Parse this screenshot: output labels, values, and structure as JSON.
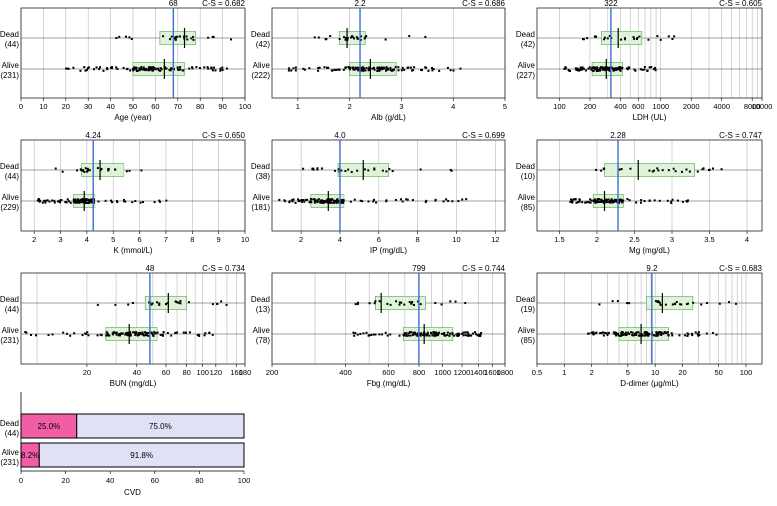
{
  "chart_data": [
    {
      "type": "scatter",
      "xlabel": "Age (year)",
      "scale": "linear",
      "xlim": [
        0,
        100
      ],
      "ticks": [
        0,
        10,
        20,
        30,
        40,
        50,
        60,
        70,
        80,
        90,
        100
      ],
      "cutoff": 68,
      "cutoff_label": "68",
      "cs": "C-S = 0.682",
      "groups": [
        {
          "name": "Dead",
          "n": "(44)",
          "q1": 62,
          "median": 73,
          "q3": 78,
          "lo": 41,
          "hi": 95
        },
        {
          "name": "Alive",
          "n": "(231)",
          "q1": 50,
          "median": 64,
          "q3": 73,
          "lo": 18,
          "hi": 93
        }
      ]
    },
    {
      "type": "scatter",
      "xlabel": "Alb (g/dL)",
      "scale": "linear",
      "xlim": [
        0.5,
        5
      ],
      "ticks": [
        1,
        2,
        3,
        4,
        5
      ],
      "cutoff": 2.2,
      "cutoff_label": "2.2",
      "cs": "C-S = 0.686",
      "groups": [
        {
          "name": "Dead",
          "n": "(42)",
          "q1": 1.8,
          "median": 1.95,
          "q3": 2.3,
          "lo": 1.2,
          "hi": 3.6
        },
        {
          "name": "Alive",
          "n": "(222)",
          "q1": 2.0,
          "median": 2.4,
          "q3": 2.9,
          "lo": 0.8,
          "hi": 4.2
        }
      ]
    },
    {
      "type": "scatter",
      "xlabel": "LDH (UL)",
      "scale": "log",
      "xlim": [
        60,
        10000
      ],
      "ticks": [
        100,
        200,
        400,
        600,
        1000,
        2000,
        4000,
        8000,
        10000
      ],
      "tick_labels": [
        "100",
        "200",
        "400",
        "600",
        "1000",
        "2000",
        "4000",
        "8000",
        "10000"
      ],
      "grid": [
        100,
        200,
        300,
        400,
        500,
        600,
        700,
        800,
        900,
        1000,
        2000,
        3000,
        4000,
        5000,
        6000,
        7000,
        8000,
        9000,
        10000
      ],
      "cutoff": 322,
      "cutoff_label": "322",
      "cs": "C-S = 0.605",
      "groups": [
        {
          "name": "Dead",
          "n": "(42)",
          "q1": 260,
          "median": 380,
          "q3": 650,
          "lo": 150,
          "hi": 1400
        },
        {
          "name": "Alive",
          "n": "(227)",
          "q1": 210,
          "median": 290,
          "q3": 420,
          "lo": 110,
          "hi": 900
        }
      ]
    },
    {
      "type": "scatter",
      "xlabel": "K (mmol/L)",
      "scale": "linear",
      "xlim": [
        1.5,
        10
      ],
      "ticks": [
        2,
        3,
        4,
        5,
        6,
        7,
        8,
        9,
        10
      ],
      "cutoff": 4.24,
      "cutoff_label": "4.24",
      "cs": "C-S = 0.650",
      "groups": [
        {
          "name": "Dead",
          "n": "(44)",
          "q1": 3.8,
          "median": 4.5,
          "q3": 5.4,
          "lo": 2.7,
          "hi": 9.2
        },
        {
          "name": "Alive",
          "n": "(229)",
          "q1": 3.5,
          "median": 3.9,
          "q3": 4.3,
          "lo": 2.1,
          "hi": 7.1
        }
      ]
    },
    {
      "type": "scatter",
      "xlabel": "IP (mg/dL)",
      "scale": "linear",
      "xlim": [
        0.5,
        12.5
      ],
      "ticks": [
        2,
        4,
        6,
        8,
        10,
        12
      ],
      "cutoff": 4.0,
      "cutoff_label": "4.0",
      "cs": "C-S = 0.699",
      "groups": [
        {
          "name": "Dead",
          "n": "(38)",
          "q1": 3.9,
          "median": 5.2,
          "q3": 6.5,
          "lo": 2.1,
          "hi": 11.1
        },
        {
          "name": "Alive",
          "n": "(181)",
          "q1": 2.5,
          "median": 3.4,
          "q3": 4.2,
          "lo": 0.8,
          "hi": 10.6
        }
      ]
    },
    {
      "type": "scatter",
      "xlabel": "Mg (mg/dL)",
      "scale": "linear",
      "xlim": [
        1.2,
        4.2
      ],
      "ticks": [
        1.5,
        2,
        2.5,
        3,
        3.5,
        4
      ],
      "cutoff": 2.28,
      "cutoff_label": "2.28",
      "cs": "C-S = 0.747",
      "groups": [
        {
          "name": "Dead",
          "n": "(10)",
          "q1": 2.1,
          "median": 2.55,
          "q3": 3.3,
          "lo": 1.9,
          "hi": 3.7
        },
        {
          "name": "Alive",
          "n": "(85)",
          "q1": 1.95,
          "median": 2.1,
          "q3": 2.35,
          "lo": 1.6,
          "hi": 3.3
        }
      ]
    },
    {
      "type": "scatter",
      "xlabel": "BUN (mg/dL)",
      "scale": "log",
      "xlim": [
        8,
        180
      ],
      "ticks": [
        20,
        40,
        60,
        80,
        100,
        120,
        160,
        180
      ],
      "tick_labels": [
        "20",
        "40",
        "60",
        "80",
        "100",
        "120",
        "160",
        "180"
      ],
      "grid": [
        10,
        20,
        30,
        40,
        50,
        60,
        70,
        80,
        90,
        100,
        120,
        140,
        160,
        180
      ],
      "cutoff": 48,
      "cutoff_label": "48",
      "cs": "C-S = 0.734",
      "groups": [
        {
          "name": "Dead",
          "n": "(44)",
          "q1": 45,
          "median": 62,
          "q3": 80,
          "lo": 18,
          "hi": 150
        },
        {
          "name": "Alive",
          "n": "(231)",
          "q1": 26,
          "median": 36,
          "q3": 53,
          "lo": 8,
          "hi": 115
        }
      ]
    },
    {
      "type": "scatter",
      "xlabel": "Fbg (mg/dL)",
      "scale": "log",
      "xlim": [
        200,
        1800
      ],
      "ticks": [
        200,
        400,
        600,
        800,
        1000,
        1200,
        1400,
        1600,
        1800
      ],
      "tick_labels": [
        "200",
        "400",
        "600",
        "800",
        "1000",
        "1200",
        "1400",
        "1600",
        "1800"
      ],
      "grid": [
        200,
        300,
        400,
        500,
        600,
        700,
        800,
        900,
        1000,
        1200,
        1400,
        1600,
        1800
      ],
      "cutoff": 799,
      "cutoff_label": "799",
      "cs": "C-S = 0.744",
      "groups": [
        {
          "name": "Dead",
          "n": "(13)",
          "q1": 530,
          "median": 560,
          "q3": 850,
          "lo": 440,
          "hi": 1240
        },
        {
          "name": "Alive",
          "n": "(78)",
          "q1": 690,
          "median": 840,
          "q3": 1100,
          "lo": 420,
          "hi": 1450
        }
      ]
    },
    {
      "type": "scatter",
      "xlabel": "D-dimer (μg/mL)",
      "scale": "log",
      "xlim": [
        0.5,
        150
      ],
      "ticks": [
        0.5,
        1,
        2,
        5,
        10,
        20,
        50,
        100
      ],
      "tick_labels": [
        "0.5",
        "1",
        "2",
        "5",
        "10",
        "20",
        "50",
        "100"
      ],
      "grid": [
        0.5,
        1,
        2,
        3,
        4,
        5,
        6,
        7,
        8,
        9,
        10,
        20,
        30,
        40,
        50,
        60,
        70,
        80,
        90,
        100
      ],
      "cutoff": 9.2,
      "cutoff_label": "9.2",
      "cs": "C-S = 0.683",
      "groups": [
        {
          "name": "Dead",
          "n": "(19)",
          "q1": 8,
          "median": 12,
          "q3": 26,
          "lo": 2,
          "hi": 80
        },
        {
          "name": "Alive",
          "n": "(85)",
          "q1": 4,
          "median": 7,
          "q3": 14,
          "lo": 1.8,
          "hi": 50
        }
      ]
    },
    {
      "type": "bar",
      "stacked": true,
      "xlabel": "CVD",
      "xlim": [
        0,
        100
      ],
      "ticks": [
        0,
        20,
        40,
        60,
        80,
        100
      ],
      "categories": [
        "Dead",
        "Alive"
      ],
      "category_n": [
        "(44)",
        "(231)"
      ],
      "series": [
        {
          "values": [
            25.0,
            8.2
          ],
          "labels": [
            "25.0%",
            "8.2%"
          ],
          "color": "#f25ea6"
        },
        {
          "values": [
            75.0,
            91.8
          ],
          "labels": [
            "75.0%",
            "91.8%"
          ],
          "color": "#e0e0f6"
        }
      ]
    }
  ],
  "colors": {
    "cutoff": "#3a6fd0",
    "box_fill": "#e1f4dc",
    "box_stroke": "#6aaa60",
    "cvd_pos": "#f25ea6",
    "cvd_neg": "#e0e0f6"
  }
}
